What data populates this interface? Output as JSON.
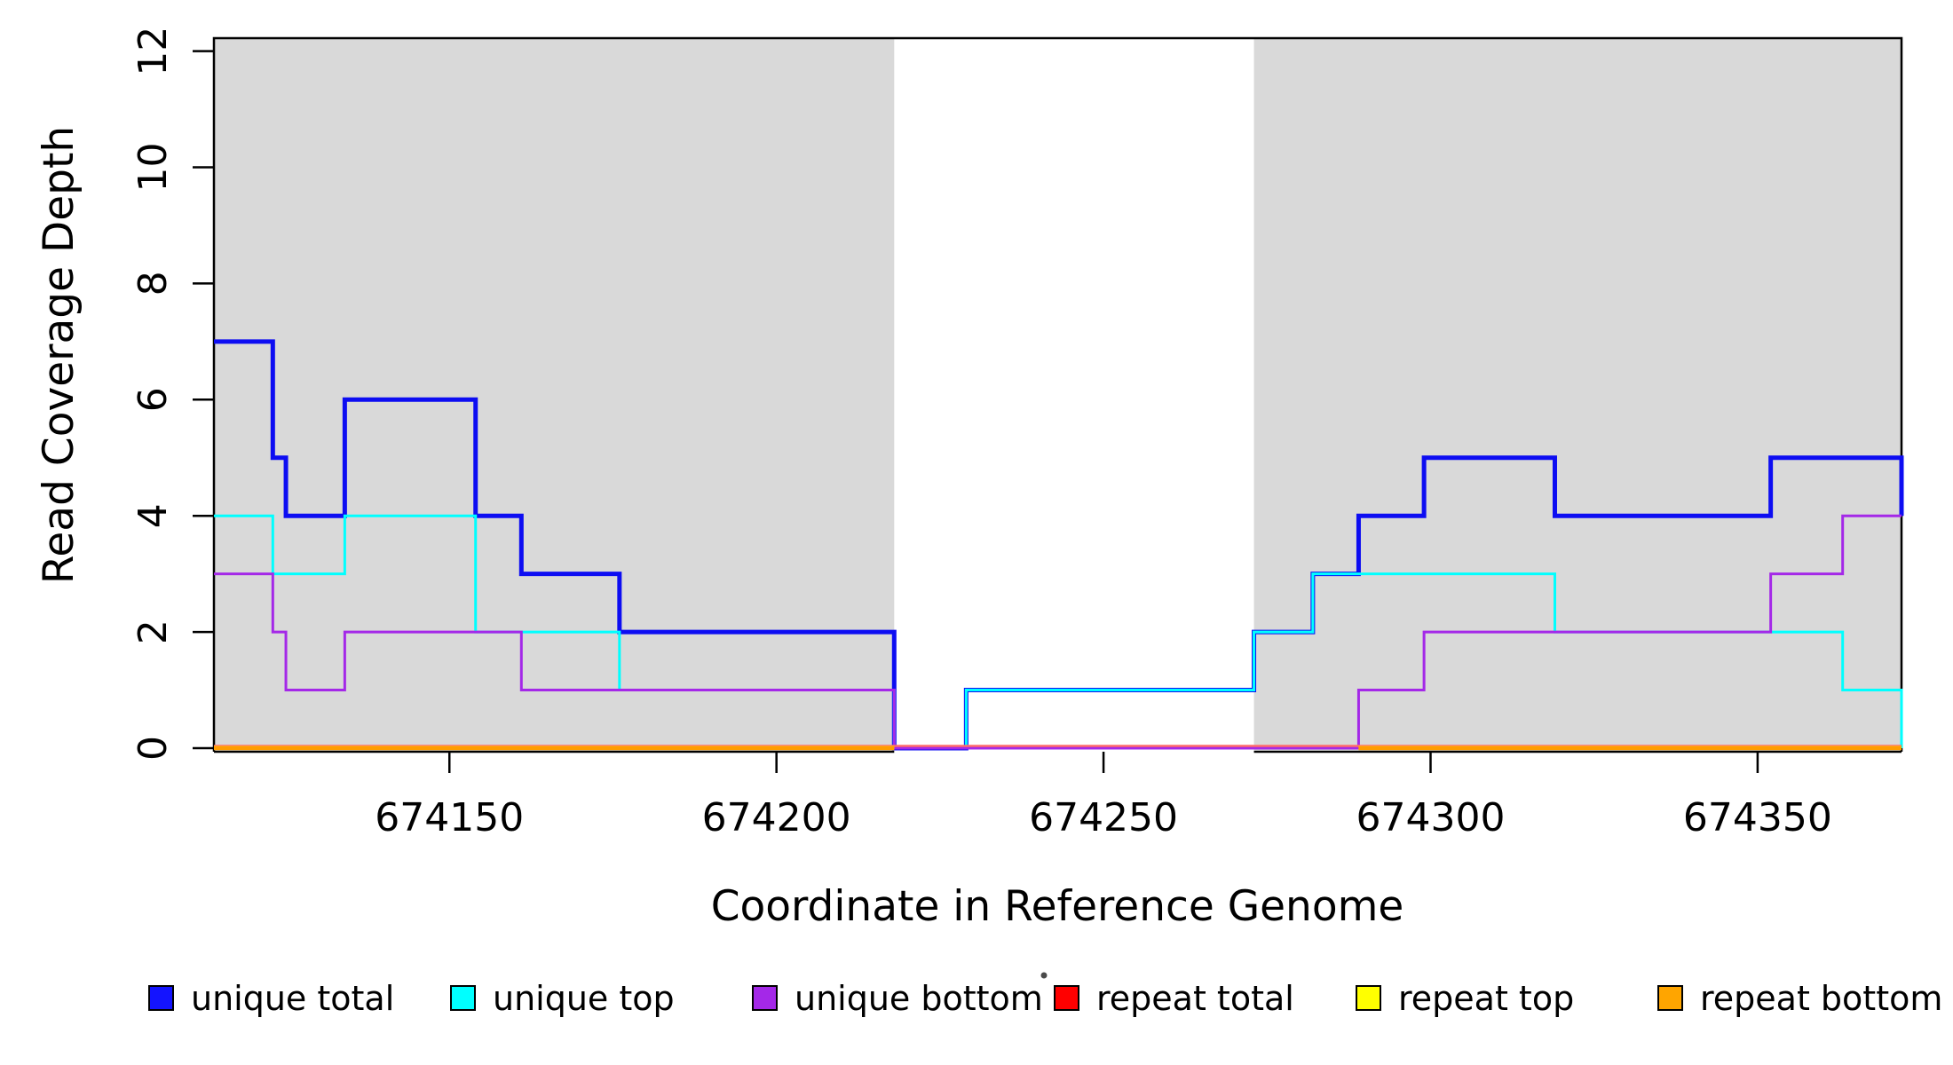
{
  "chart_data": {
    "type": "line",
    "subtype": "step-post-coverage",
    "title": "",
    "xlabel": "Coordinate in Reference Genome",
    "ylabel": "Read Coverage Depth",
    "xlim": [
      674114,
      674372
    ],
    "ylim": [
      0,
      12
    ],
    "x_ticks": [
      674150,
      674200,
      674250,
      674300,
      674350
    ],
    "y_ticks": [
      0,
      2,
      4,
      6,
      8,
      10,
      12
    ],
    "grid": false,
    "legend_position": "bottom",
    "shaded_regions": [
      {
        "x0": 674114,
        "x1": 674218,
        "color": "#d9d9d9"
      },
      {
        "x0": 674273,
        "x1": 674372,
        "color": "#d9d9d9"
      }
    ],
    "series": [
      {
        "name": "unique total",
        "color": "#0d0df2",
        "width": 5,
        "steps": [
          [
            674114,
            7
          ],
          [
            674123,
            5
          ],
          [
            674125,
            4
          ],
          [
            674134,
            6
          ],
          [
            674154,
            4
          ],
          [
            674161,
            3
          ],
          [
            674176,
            2
          ],
          [
            674218,
            0
          ],
          [
            674229,
            1
          ],
          [
            674273,
            2
          ],
          [
            674282,
            3
          ],
          [
            674289,
            4
          ],
          [
            674299,
            5
          ],
          [
            674319,
            4
          ],
          [
            674352,
            5
          ]
        ],
        "end_drop": 4
      },
      {
        "name": "unique top",
        "color": "#00ffff",
        "width": 3,
        "steps": [
          [
            674114,
            4
          ],
          [
            674123,
            3
          ],
          [
            674134,
            4
          ],
          [
            674154,
            2
          ],
          [
            674176,
            1
          ],
          [
            674218,
            0
          ],
          [
            674229,
            1
          ],
          [
            674273,
            2
          ],
          [
            674282,
            3
          ],
          [
            674319,
            2
          ],
          [
            674363,
            1
          ]
        ],
        "end_drop": 0
      },
      {
        "name": "unique bottom",
        "color": "#a428e8",
        "width": 3,
        "steps": [
          [
            674114,
            3
          ],
          [
            674123,
            2
          ],
          [
            674125,
            1
          ],
          [
            674134,
            2
          ],
          [
            674161,
            1
          ],
          [
            674218,
            0
          ],
          [
            674289,
            1
          ],
          [
            674299,
            2
          ],
          [
            674352,
            3
          ],
          [
            674363,
            4
          ]
        ],
        "end_drop": null
      },
      {
        "name": "repeat total",
        "color": "#ff6a6a",
        "width": 2.5,
        "steps": [
          [
            674114,
            0
          ]
        ],
        "visible_ranges": [
          [
            674114,
            674372
          ]
        ],
        "baseline_offset": -2.5
      },
      {
        "name": "repeat top",
        "color": "#ffff00",
        "width": 4,
        "steps": [
          [
            674114,
            0
          ]
        ],
        "visible_ranges": [
          [
            674114,
            674218
          ],
          [
            674289,
            674372
          ]
        ],
        "baseline_offset": -0.5
      },
      {
        "name": "repeat bottom",
        "color": "#ff9d00",
        "width": 4.5,
        "steps": [
          [
            674114,
            0
          ]
        ],
        "visible_ranges": [
          [
            674114,
            674218
          ],
          [
            674289,
            674372
          ]
        ],
        "baseline_offset": 0
      }
    ],
    "x_end": 674372
  },
  "legend": {
    "items": [
      {
        "label": "unique total",
        "color": "#1414ff"
      },
      {
        "label": "unique top",
        "color": "#00ffff"
      },
      {
        "label": "unique bottom",
        "color": "#a428e8"
      },
      {
        "label": "repeat total",
        "color": "#ff0000"
      },
      {
        "label": "repeat top",
        "color": "#ffff00"
      },
      {
        "label": "repeat bottom",
        "color": "#ffa500"
      }
    ]
  },
  "artifacts": {
    "stray_dot_color": "#4a4a4a"
  }
}
